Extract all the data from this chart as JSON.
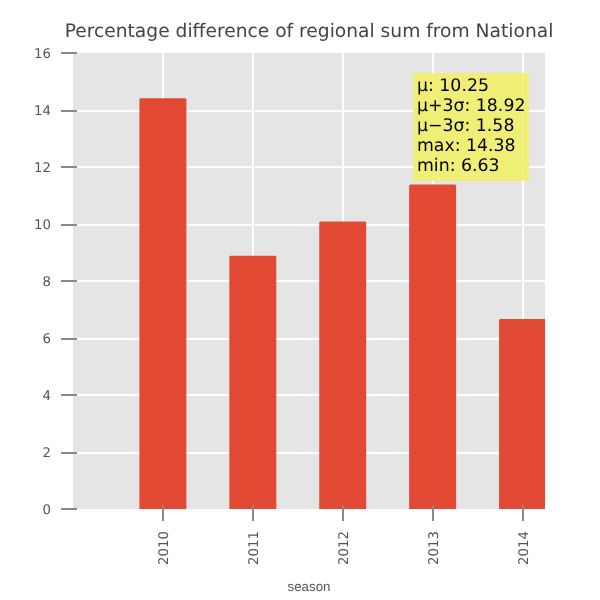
{
  "chart_data": {
    "type": "bar",
    "title": "Percentage difference of regional sum from National",
    "xlabel": "season",
    "categories": [
      "2010",
      "2011",
      "2012",
      "2013",
      "2014"
    ],
    "values": [
      14.38,
      8.85,
      10.05,
      11.35,
      6.63
    ],
    "color": "#e24a33",
    "ylim": [
      0,
      16
    ],
    "yticks": [
      0,
      2,
      4,
      6,
      8,
      10,
      12,
      14,
      16
    ],
    "grid": true,
    "annotations": [
      "μ:  10.25",
      "μ+3σ: 18.92",
      "μ−3σ: 1.58",
      "max: 14.38",
      "min: 6.63"
    ]
  }
}
